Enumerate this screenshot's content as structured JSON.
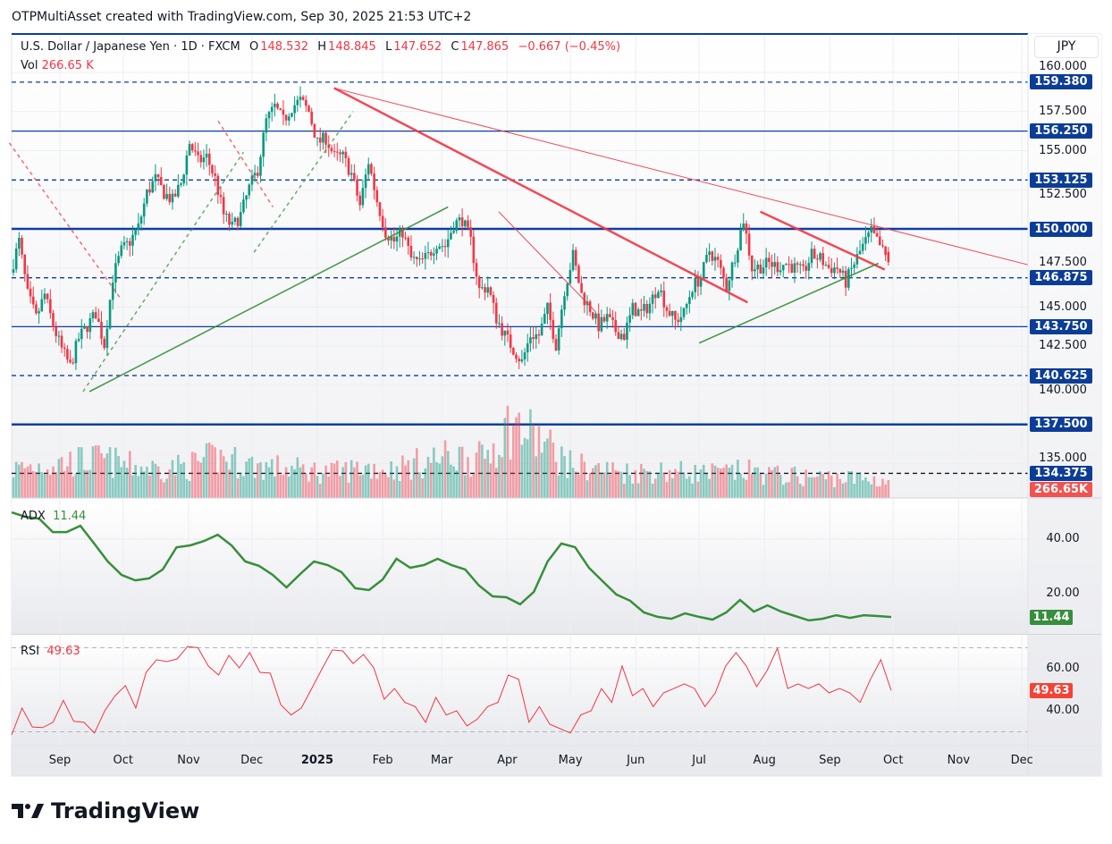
{
  "credit": "OTPMultiAsset created with TradingView.com, Sep 30, 2025 21:53 UTC+2",
  "legend": {
    "symbol": "U.S. Dollar / Japanese Yen · 1D · FXCM",
    "open_label": "O",
    "open": "148.532",
    "high_label": "H",
    "high": "148.845",
    "low_label": "L",
    "low": "147.652",
    "close_label": "C",
    "close": "147.865",
    "change": "−0.667 (−0.45%)",
    "vol_label": "Vol",
    "vol": "266.65 K"
  },
  "currency": "JPY",
  "colors": {
    "up": "#089981",
    "down": "#f23645",
    "level": "#0d3f9e",
    "trend_green": "#388e3c",
    "trend_red": "#f23645",
    "adx": "#388e3c",
    "rsi": "#f23645"
  },
  "price_axis": {
    "ticks": [
      "160.000",
      "157.500",
      "155.000",
      "152.500",
      "147.500",
      "145.000",
      "142.500",
      "140.000",
      "135.000"
    ]
  },
  "levels": [
    {
      "price": 159.38,
      "label": "159.380",
      "style": "dashed"
    },
    {
      "price": 156.25,
      "label": "156.250",
      "style": "solid"
    },
    {
      "price": 153.125,
      "label": "153.125",
      "style": "dashed"
    },
    {
      "price": 150.0,
      "label": "150.000",
      "style": "solid-thick"
    },
    {
      "price": 146.875,
      "label": "146.875",
      "style": "dashed"
    },
    {
      "price": 143.75,
      "label": "143.750",
      "style": "solid"
    },
    {
      "price": 140.625,
      "label": "140.625",
      "style": "dashed"
    },
    {
      "price": 137.5,
      "label": "137.500",
      "style": "solid-thick"
    },
    {
      "price": 134.375,
      "label": "134.375",
      "style": "dashed-dark"
    }
  ],
  "volume_tag": "266.65K",
  "chart_data": {
    "type": "candlestick",
    "period": [
      "2024-08-09",
      "2025-09-30"
    ],
    "closes_sampled": [
      147.2,
      149.2,
      145.8,
      144.3,
      145.8,
      143.8,
      142.3,
      141.2,
      143.0,
      143.8,
      144.6,
      142.6,
      146.9,
      148.6,
      149.2,
      150.1,
      152.3,
      153.2,
      152.3,
      151.8,
      152.9,
      155.5,
      154.3,
      154.6,
      153.2,
      150.9,
      150.1,
      150.9,
      152.6,
      153.8,
      156.9,
      157.8,
      156.9,
      157.8,
      158.2,
      157.5,
      155.5,
      155.8,
      154.6,
      154.6,
      153.5,
      151.5,
      154.3,
      151.8,
      149.8,
      149.2,
      149.8,
      148.1,
      147.8,
      148.3,
      149.1,
      148.9,
      150.3,
      150.6,
      149.2,
      146.1,
      146.3,
      144.3,
      143.2,
      142.3,
      141.5,
      143.2,
      143.2,
      144.9,
      142.6,
      146.1,
      148.3,
      145.8,
      144.9,
      143.8,
      144.3,
      143.5,
      143.2,
      144.9,
      144.6,
      145.2,
      146.4,
      144.9,
      144.1,
      144.6,
      146.3,
      146.9,
      148.6,
      147.8,
      146.3,
      148.3,
      150.6,
      147.5,
      147.6,
      147.8,
      147.6,
      147.8,
      147.5,
      147.2,
      148.3,
      148.1,
      147.5,
      147.5,
      146.6,
      147.8,
      148.9,
      149.8,
      148.9,
      147.865
    ],
    "volume_K_sampled": [
      450,
      520,
      560,
      600,
      500,
      450,
      500,
      640,
      520,
      470,
      430,
      400,
      480,
      450,
      560,
      660,
      600,
      1150,
      900,
      520,
      450,
      400,
      420,
      400,
      380,
      420,
      360,
      330,
      320,
      300,
      266.65
    ],
    "trendlines": [
      {
        "from": [
          "2024-09-15",
          139.6
        ],
        "to": [
          "2025-03-04",
          151.4
        ],
        "color": "green",
        "style": "solid"
      },
      {
        "from": [
          "2025-01-09",
          159.0
        ],
        "to": [
          "2025-07-24",
          145.3
        ],
        "color": "red",
        "style": "thick"
      },
      {
        "from": [
          "2025-01-09",
          159.0
        ],
        "to": [
          "2025-12-04",
          147.7
        ],
        "color": "red",
        "style": "thin"
      },
      {
        "from": [
          "2025-03-28",
          151.1
        ],
        "to": [
          "2025-05-13",
          144.7
        ],
        "color": "red",
        "style": "thin"
      },
      {
        "from": [
          "2025-07-30",
          151.1
        ],
        "to": [
          "2025-09-27",
          147.4
        ],
        "color": "red",
        "style": "thick"
      },
      {
        "from": [
          "2025-07-01",
          142.7
        ],
        "to": [
          "2025-09-24",
          147.8
        ],
        "color": "green",
        "style": "solid"
      },
      {
        "from": [
          "2024-08-08",
          155.5
        ],
        "to": [
          "2024-09-30",
          145.5
        ],
        "color": "red",
        "style": "dashed"
      },
      {
        "from": [
          "2024-09-12",
          139.6
        ],
        "to": [
          "2024-11-27",
          154.9
        ],
        "color": "green",
        "style": "dashed"
      },
      {
        "from": [
          "2024-11-15",
          156.9
        ],
        "to": [
          "2024-12-11",
          151.4
        ],
        "color": "red",
        "style": "dashed"
      },
      {
        "from": [
          "2024-12-02",
          148.5
        ],
        "to": [
          "2025-01-18",
          157.5
        ],
        "color": "green",
        "style": "dashed"
      }
    ],
    "time_axis": [
      [
        "Sep",
        "2024-09-01"
      ],
      [
        "Oct",
        "2024-10-01"
      ],
      [
        "Nov",
        "2024-11-01"
      ],
      [
        "Dec",
        "2024-12-01"
      ],
      [
        "2025",
        "2025-01-01"
      ],
      [
        "Feb",
        "2025-02-01"
      ],
      [
        "Mar",
        "2025-03-01"
      ],
      [
        "Apr",
        "2025-04-01"
      ],
      [
        "May",
        "2025-05-01"
      ],
      [
        "Jun",
        "2025-06-01"
      ],
      [
        "Jul",
        "2025-07-01"
      ],
      [
        "Aug",
        "2025-08-01"
      ],
      [
        "Sep",
        "2025-09-01"
      ],
      [
        "Oct",
        "2025-10-01"
      ],
      [
        "Nov",
        "2025-11-01"
      ],
      [
        "Dec",
        "2025-12-01"
      ]
    ],
    "ylim": [
      133.5,
      162.4
    ]
  },
  "adx": {
    "label": "ADX",
    "value": "11.44",
    "ticks": [
      "40.00",
      "20.00"
    ],
    "values_sampled": [
      49.8,
      48.2,
      47.5,
      42.6,
      42.6,
      44.9,
      38.4,
      31.8,
      26.9,
      24.9,
      25.6,
      28.9,
      37,
      37.7,
      39.3,
      41.6,
      37.7,
      31.8,
      30.2,
      26.9,
      22.3,
      27.2,
      31.8,
      30.5,
      27.9,
      22,
      21.3,
      25.2,
      32.8,
      29.5,
      30.5,
      32.8,
      30.5,
      28.9,
      23,
      19,
      18.7,
      16.1,
      20.7,
      31.8,
      38.4,
      37,
      29.5,
      24.6,
      19.7,
      17.4,
      13.1,
      11.5,
      10.8,
      12.8,
      11.5,
      10.5,
      13.1,
      17.7,
      13.4,
      15.7,
      13.4,
      11.8,
      10.2,
      10.8,
      12.1,
      11.1,
      12.1,
      11.8,
      11.44
    ]
  },
  "rsi": {
    "label": "RSI",
    "value": "49.63",
    "ticks": [
      "60.00",
      "40.00"
    ],
    "bands": [
      70,
      30
    ],
    "values_sampled": [
      28.5,
      41.3,
      32.3,
      32,
      34.5,
      45,
      35,
      34.5,
      29.4,
      40,
      47.2,
      52,
      41.3,
      58.3,
      64.3,
      63.4,
      64.7,
      70.6,
      70,
      61.3,
      57,
      66.4,
      60.4,
      67.7,
      58.3,
      57.9,
      43,
      38,
      41.3,
      50.6,
      60,
      69,
      68.5,
      62.5,
      66.8,
      60.4,
      45.5,
      50.6,
      44,
      42,
      34.5,
      46.4,
      38,
      40,
      32.8,
      36,
      42,
      44,
      57,
      55,
      34.5,
      42,
      33.6,
      31.5,
      29.4,
      38,
      40,
      50.6,
      44,
      61.3,
      47.2,
      50.6,
      42,
      48.5,
      50.6,
      52.8,
      50.6,
      42,
      48.5,
      61.3,
      67.7,
      61.3,
      51.5,
      59.1,
      69.8,
      50.6,
      52.8,
      50.6,
      52.8,
      48.5,
      50.6,
      48.5,
      44,
      55,
      64.3,
      49.63
    ]
  },
  "brand": "TradingView"
}
